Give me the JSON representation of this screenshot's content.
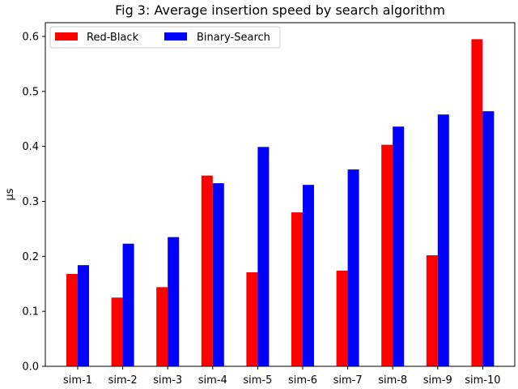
{
  "chart_data": {
    "type": "bar",
    "title": "Fig 3: Average insertion speed by search algorithm",
    "xlabel": "",
    "ylabel": "μs",
    "categories": [
      "sim-1",
      "sim-2",
      "sim-3",
      "sim-4",
      "sim-5",
      "sim-6",
      "sim-7",
      "sim-8",
      "sim-9",
      "sim-10"
    ],
    "series": [
      {
        "name": "Red-Black",
        "color": "#ff0000",
        "values": [
          0.168,
          0.125,
          0.144,
          0.347,
          0.171,
          0.28,
          0.174,
          0.403,
          0.202,
          0.595
        ]
      },
      {
        "name": "Binary-Search",
        "color": "#0000ff",
        "values": [
          0.184,
          0.223,
          0.235,
          0.333,
          0.399,
          0.33,
          0.358,
          0.436,
          0.458,
          0.464
        ]
      }
    ],
    "ylim": [
      0,
      0.625
    ],
    "yticks": [
      "0.0",
      "0.1",
      "0.2",
      "0.3",
      "0.4",
      "0.5",
      "0.6"
    ],
    "grid": false,
    "legend_position": "top-left"
  }
}
